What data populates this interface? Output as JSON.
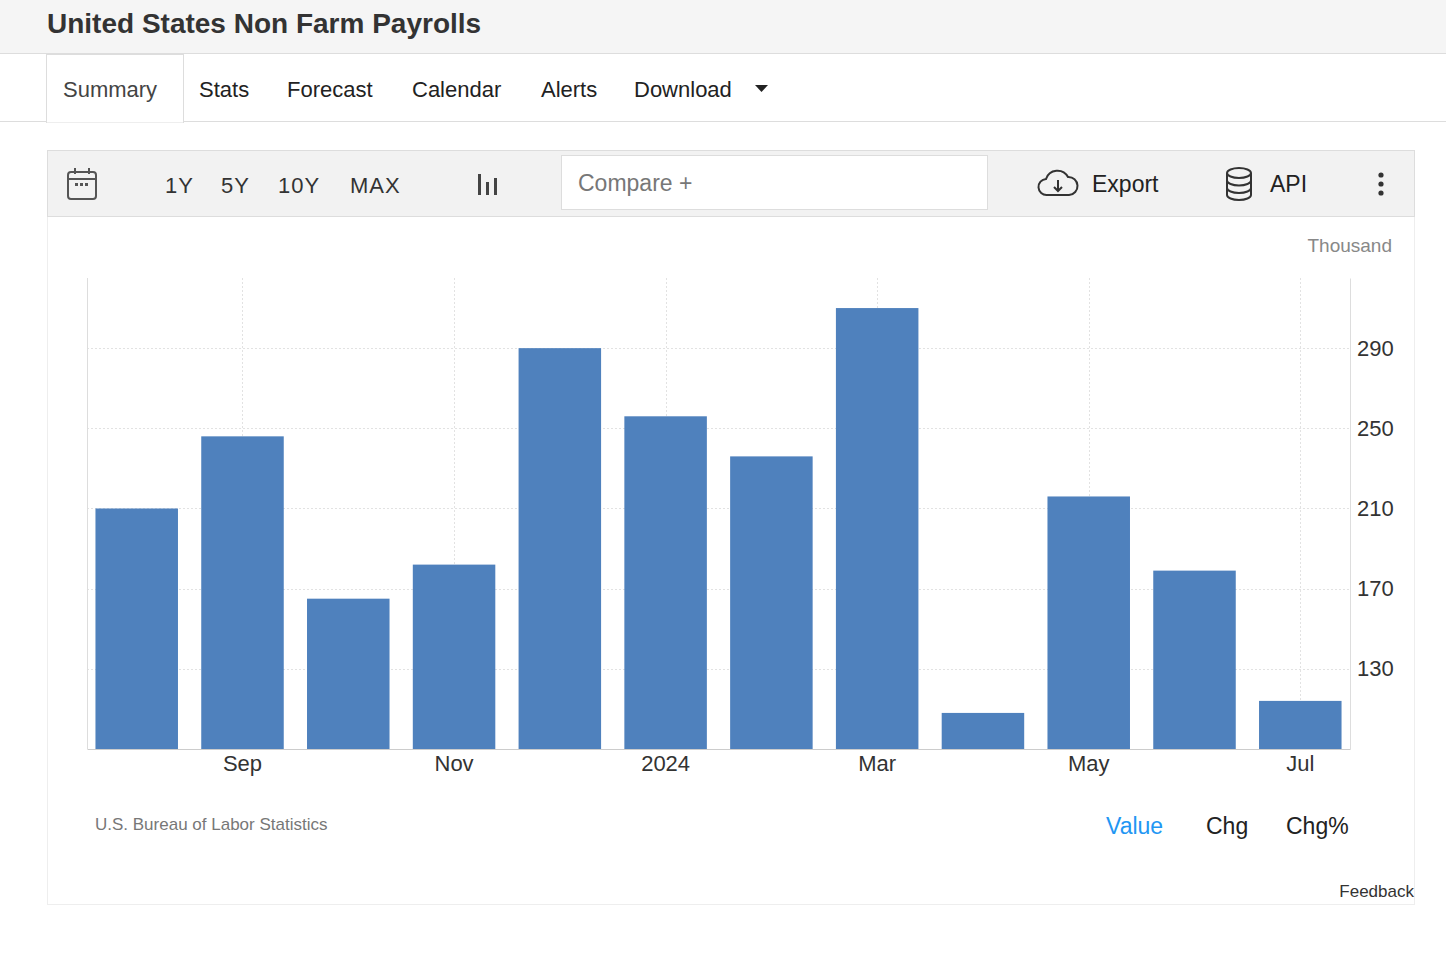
{
  "page": {
    "tabs": [
      "Summary",
      "Stats",
      "Forecast",
      "Calendar",
      "Alerts",
      "Download"
    ],
    "ranges": [
      "1Y",
      "5Y",
      "10Y",
      "MAX"
    ],
    "compare": "Compare +",
    "export": "Export",
    "api": "API",
    "views": [
      "Value",
      "Chg",
      "Chg%"
    ],
    "feedback": "Feedback"
  },
  "chart_data": {
    "type": "bar",
    "title": "United States Non Farm Payrolls",
    "unit_label": "Thousand",
    "source": "U.S. Bureau of Labor Statistics",
    "categories": [
      null,
      "Sep",
      null,
      "Nov",
      null,
      "2024",
      null,
      "Mar",
      null,
      "May",
      null,
      "Jul"
    ],
    "values": [
      210,
      246,
      165,
      182,
      290,
      256,
      236,
      310,
      108,
      216,
      179,
      114
    ],
    "color": "#4f81bd",
    "ylim": [
      90,
      325
    ],
    "yticks": [
      130,
      170,
      210,
      250,
      290
    ],
    "grid": true
  }
}
